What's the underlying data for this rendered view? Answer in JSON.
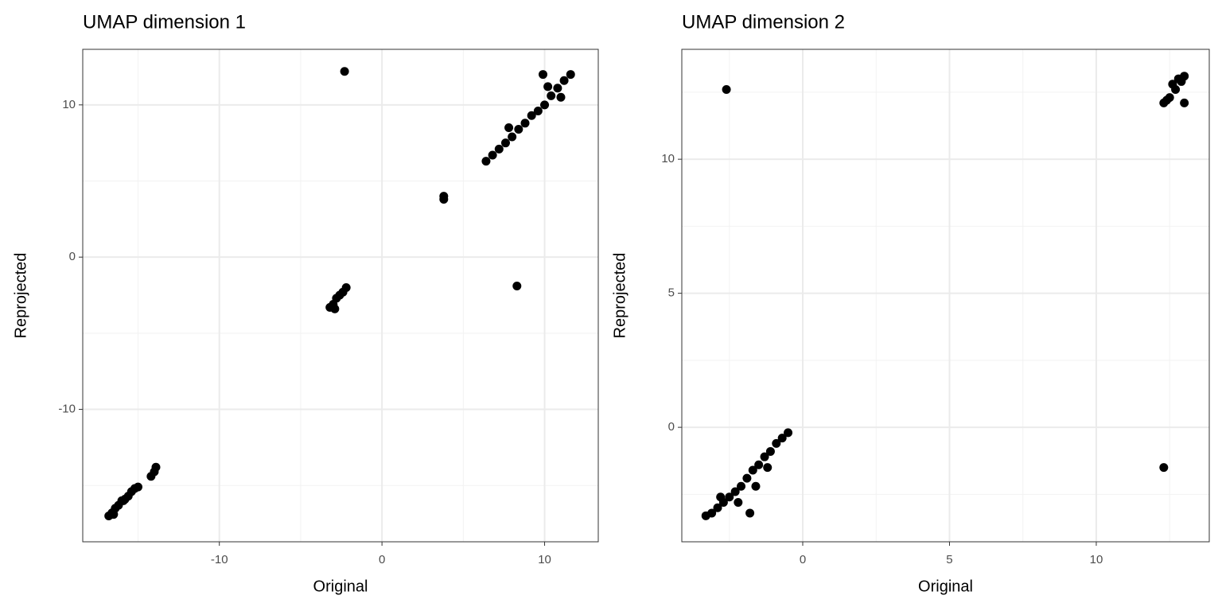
{
  "chart_data": [
    {
      "type": "scatter",
      "title": "UMAP dimension 1",
      "x_label": "Original",
      "y_label": "Reprojected",
      "color": "#000000",
      "grid": true,
      "x": [
        -16.8,
        -16.6,
        -16.4,
        -16.2,
        -16.0,
        -15.8,
        -15.6,
        -15.4,
        -15.2,
        -15.0,
        -16.5,
        -15.9,
        -14.2,
        -14.0,
        -13.9,
        -3.2,
        -3.0,
        -2.8,
        -2.6,
        -2.4,
        -2.2,
        -2.9,
        3.8,
        3.8,
        -2.3,
        8.3,
        6.4,
        6.8,
        7.2,
        7.6,
        8.0,
        8.4,
        8.8,
        9.2,
        9.6,
        10.0,
        10.4,
        10.8,
        11.2,
        11.6,
        9.9,
        10.2,
        11.0,
        7.8
      ],
      "y": [
        -17.0,
        -16.8,
        -16.5,
        -16.3,
        -16.0,
        -15.9,
        -15.7,
        -15.4,
        -15.2,
        -15.1,
        -16.9,
        -16.0,
        -14.4,
        -14.1,
        -13.8,
        -3.3,
        -3.1,
        -2.7,
        -2.5,
        -2.3,
        -2.0,
        -3.4,
        3.8,
        4.0,
        12.2,
        -1.9,
        6.3,
        6.7,
        7.1,
        7.5,
        7.9,
        8.4,
        8.8,
        9.3,
        9.6,
        10.0,
        10.6,
        11.1,
        11.6,
        12.0,
        12.0,
        11.2,
        10.5,
        8.5
      ],
      "xlim": [
        -18.4,
        13.3
      ],
      "ylim": [
        -18.7,
        13.65
      ],
      "xticks": [
        -10,
        0,
        10
      ],
      "yticks": [
        -10,
        0,
        10
      ],
      "xminor": [
        -15,
        -5,
        5
      ],
      "yminor": [
        -15,
        -5,
        5
      ]
    },
    {
      "type": "scatter",
      "title": "UMAP dimension 2",
      "x_label": "Original",
      "y_label": "Reprojected",
      "color": "#000000",
      "grid": true,
      "x": [
        -3.3,
        -3.1,
        -2.9,
        -2.7,
        -2.5,
        -2.3,
        -2.1,
        -1.9,
        -1.7,
        -1.5,
        -1.3,
        -1.1,
        -0.9,
        -0.7,
        -0.5,
        -2.2,
        -1.6,
        -1.2,
        -2.8,
        -1.8,
        -2.6,
        12.3,
        12.5,
        12.7,
        12.9,
        13.0,
        12.4,
        12.6,
        12.8,
        13.0,
        12.3
      ],
      "y": [
        -3.3,
        -3.2,
        -3.0,
        -2.8,
        -2.6,
        -2.4,
        -2.2,
        -1.9,
        -1.6,
        -1.4,
        -1.1,
        -0.9,
        -0.6,
        -0.4,
        -0.2,
        -2.8,
        -2.2,
        -1.5,
        -2.6,
        -3.2,
        12.6,
        12.1,
        12.3,
        12.6,
        12.9,
        13.1,
        12.2,
        12.8,
        13.0,
        12.1,
        -1.5
      ],
      "xlim": [
        -4.12,
        13.85
      ],
      "ylim": [
        -4.27,
        14.1
      ],
      "xticks": [
        0,
        5,
        10
      ],
      "yticks": [
        0,
        5,
        10
      ],
      "xminor": [
        -2.5,
        2.5,
        7.5,
        12.5
      ],
      "yminor": [
        -2.5,
        2.5,
        7.5,
        12.5
      ]
    }
  ]
}
